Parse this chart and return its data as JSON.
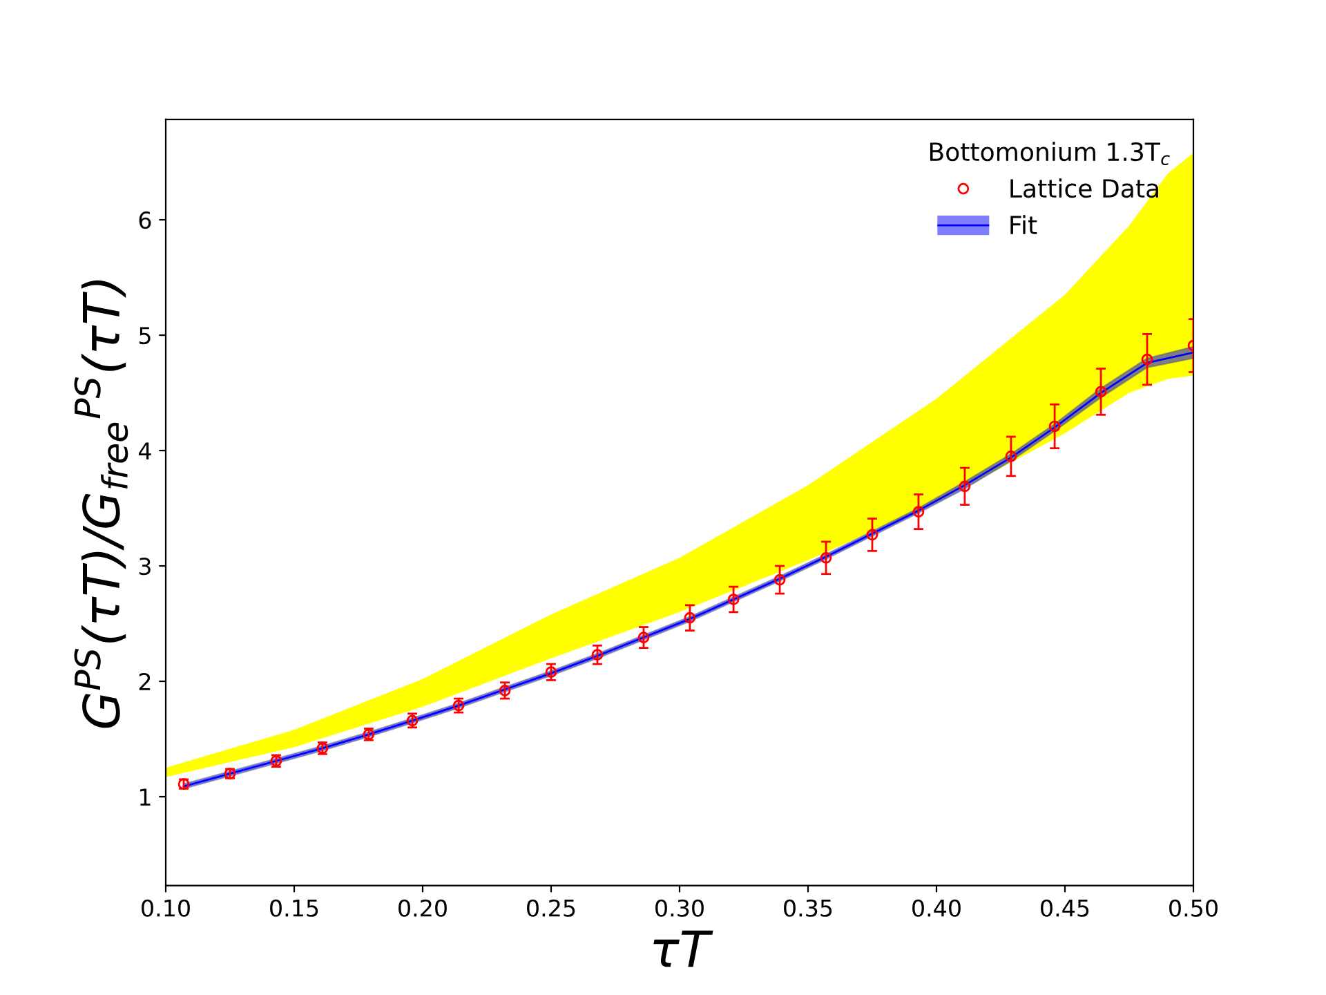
{
  "chart_data": {
    "type": "line",
    "xlabel": "τT",
    "ylabel": "G$^{PS}$(τT)/G$_{free}$$^{PS}$(τT)",
    "legend_title": "Bottomonium 1.3T$_{c}$",
    "xlim": [
      0.1,
      0.5
    ],
    "ylim": [
      0.23,
      6.87
    ],
    "xticks": [
      {
        "value": 0.1,
        "label": "0.10"
      },
      {
        "value": 0.15,
        "label": "0.15"
      },
      {
        "value": 0.2,
        "label": "0.20"
      },
      {
        "value": 0.25,
        "label": "0.25"
      },
      {
        "value": 0.3,
        "label": "0.30"
      },
      {
        "value": 0.35,
        "label": "0.35"
      },
      {
        "value": 0.4,
        "label": "0.40"
      },
      {
        "value": 0.45,
        "label": "0.45"
      },
      {
        "value": 0.5,
        "label": "0.50"
      }
    ],
    "yticks": [
      1,
      2,
      3,
      4,
      5,
      6
    ],
    "grid": false,
    "legend": "top right",
    "series": [
      {
        "type": "area",
        "color": "#ffff00",
        "x": [
          0.1,
          0.15,
          0.2,
          0.25,
          0.3,
          0.35,
          0.4,
          0.45,
          0.475,
          0.49,
          0.5
        ],
        "values": [
          null,
          null,
          null,
          null,
          null,
          null,
          null,
          null,
          null,
          null,
          null
        ],
        "lower": [
          1.17,
          1.43,
          1.78,
          2.2,
          2.6,
          3.05,
          3.55,
          4.15,
          4.5,
          4.62,
          4.65
        ],
        "upper": [
          1.25,
          1.58,
          2.02,
          2.58,
          3.07,
          3.7,
          4.45,
          5.35,
          5.95,
          6.4,
          6.58
        ]
      },
      {
        "name": "Fit",
        "color": "#0000ff",
        "marker": "none",
        "x": [
          0.107,
          0.125,
          0.143,
          0.161,
          0.179,
          0.196,
          0.214,
          0.232,
          0.25,
          0.268,
          0.286,
          0.304,
          0.321,
          0.339,
          0.357,
          0.375,
          0.393,
          0.411,
          0.429,
          0.446,
          0.464,
          0.482,
          0.5
        ],
        "values": [
          1.09,
          1.2,
          1.31,
          1.42,
          1.54,
          1.66,
          1.79,
          1.93,
          2.07,
          2.22,
          2.38,
          2.54,
          2.71,
          2.89,
          3.08,
          3.28,
          3.48,
          3.7,
          3.94,
          4.2,
          4.5,
          4.76,
          4.85
        ],
        "lower": [
          1.07,
          1.18,
          1.29,
          1.4,
          1.52,
          1.64,
          1.77,
          1.91,
          2.05,
          2.2,
          2.36,
          2.52,
          2.69,
          2.87,
          3.06,
          3.26,
          3.46,
          3.67,
          3.91,
          4.17,
          4.46,
          4.72,
          4.8
        ],
        "upper": [
          1.11,
          1.22,
          1.33,
          1.44,
          1.56,
          1.68,
          1.81,
          1.95,
          2.09,
          2.24,
          2.4,
          2.56,
          2.73,
          2.91,
          3.1,
          3.3,
          3.5,
          3.73,
          3.97,
          4.23,
          4.54,
          4.8,
          4.9
        ]
      },
      {
        "type": "scatter",
        "name": "Lattice Data",
        "color": "#ff0000",
        "marker": "circle",
        "x": [
          0.107,
          0.125,
          0.143,
          0.161,
          0.179,
          0.196,
          0.214,
          0.232,
          0.25,
          0.268,
          0.286,
          0.304,
          0.321,
          0.339,
          0.357,
          0.375,
          0.393,
          0.411,
          0.429,
          0.446,
          0.464,
          0.482,
          0.5
        ],
        "values": [
          1.11,
          1.2,
          1.31,
          1.42,
          1.54,
          1.66,
          1.79,
          1.92,
          2.08,
          2.23,
          2.38,
          2.55,
          2.71,
          2.88,
          3.07,
          3.27,
          3.47,
          3.69,
          3.95,
          4.21,
          4.51,
          4.79,
          4.91
        ],
        "errors": [
          0.04,
          0.04,
          0.05,
          0.05,
          0.05,
          0.06,
          0.06,
          0.07,
          0.07,
          0.08,
          0.09,
          0.11,
          0.11,
          0.12,
          0.14,
          0.14,
          0.15,
          0.16,
          0.17,
          0.19,
          0.2,
          0.22,
          0.23
        ]
      }
    ]
  }
}
